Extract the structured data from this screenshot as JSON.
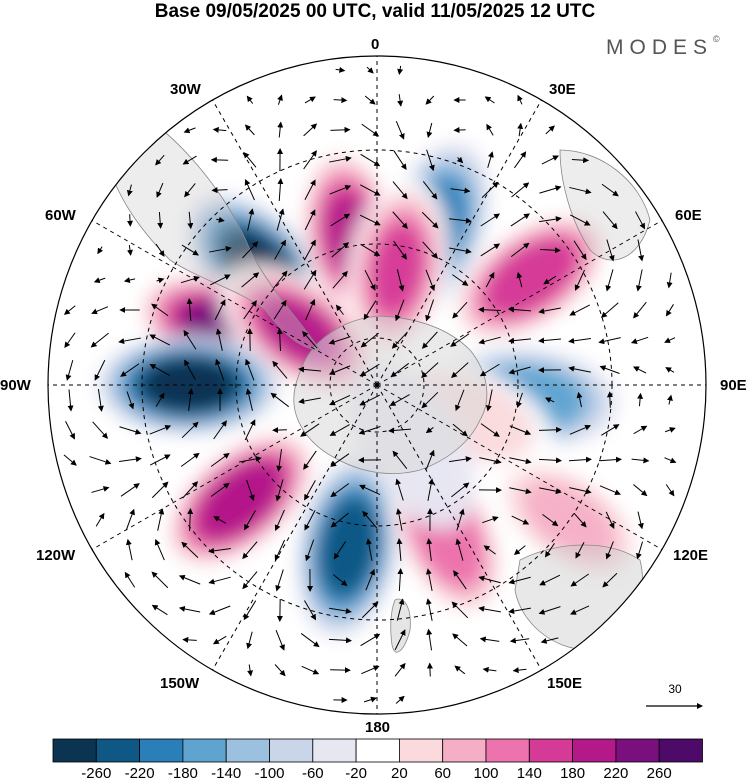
{
  "title": "Base 09/05/2025 00 UTC, valid 11/05/2025 12 UTC",
  "brand": "MODES",
  "brand_mark": "©",
  "longitude_labels": {
    "top": "0",
    "top_right": "30E",
    "right_upper": "60E",
    "right": "90E",
    "right_lower": "120E",
    "bottom_right": "150E",
    "bottom": "180",
    "bottom_left": "150W",
    "left_lower": "120W",
    "left": "90W",
    "left_upper": "60W",
    "top_left": "30W"
  },
  "reference_vector": "30",
  "colorbar": {
    "ticks": [
      "-260",
      "-220",
      "-180",
      "-140",
      "-100",
      "-60",
      "-20",
      "20",
      "60",
      "100",
      "140",
      "180",
      "220",
      "260"
    ],
    "colors": [
      "#0b3452",
      "#0f5886",
      "#2b7fb9",
      "#5fa3d1",
      "#9cc0e0",
      "#c9d6ea",
      "#e7e7f2",
      "#ffffff",
      "#fadadd",
      "#f5aec6",
      "#ec73ad",
      "#d63a97",
      "#b4198a",
      "#7a0f7e",
      "#4e0a68"
    ]
  },
  "anomaly_centers": [
    {
      "lon": -45,
      "lat": -55,
      "value": -260
    },
    {
      "lon": -10,
      "lat": -58,
      "value": 200
    },
    {
      "lon": 20,
      "lat": -55,
      "value": -200
    },
    {
      "lon": 10,
      "lat": -65,
      "value": 160
    },
    {
      "lon": 55,
      "lat": -50,
      "value": 180
    },
    {
      "lon": -70,
      "lat": -55,
      "value": 240
    },
    {
      "lon": -55,
      "lat": -70,
      "value": 200
    },
    {
      "lon": -90,
      "lat": -50,
      "value": -260
    },
    {
      "lon": -130,
      "lat": -52,
      "value": 220
    },
    {
      "lon": -170,
      "lat": -55,
      "value": -220
    },
    {
      "lon": 155,
      "lat": -55,
      "value": 140
    },
    {
      "lon": 95,
      "lat": -58,
      "value": -140
    },
    {
      "lon": 125,
      "lat": -40,
      "value": 80
    },
    {
      "lon": 110,
      "lat": -70,
      "value": 60
    },
    {
      "lon": 150,
      "lat": -75,
      "value": -40
    }
  ]
}
